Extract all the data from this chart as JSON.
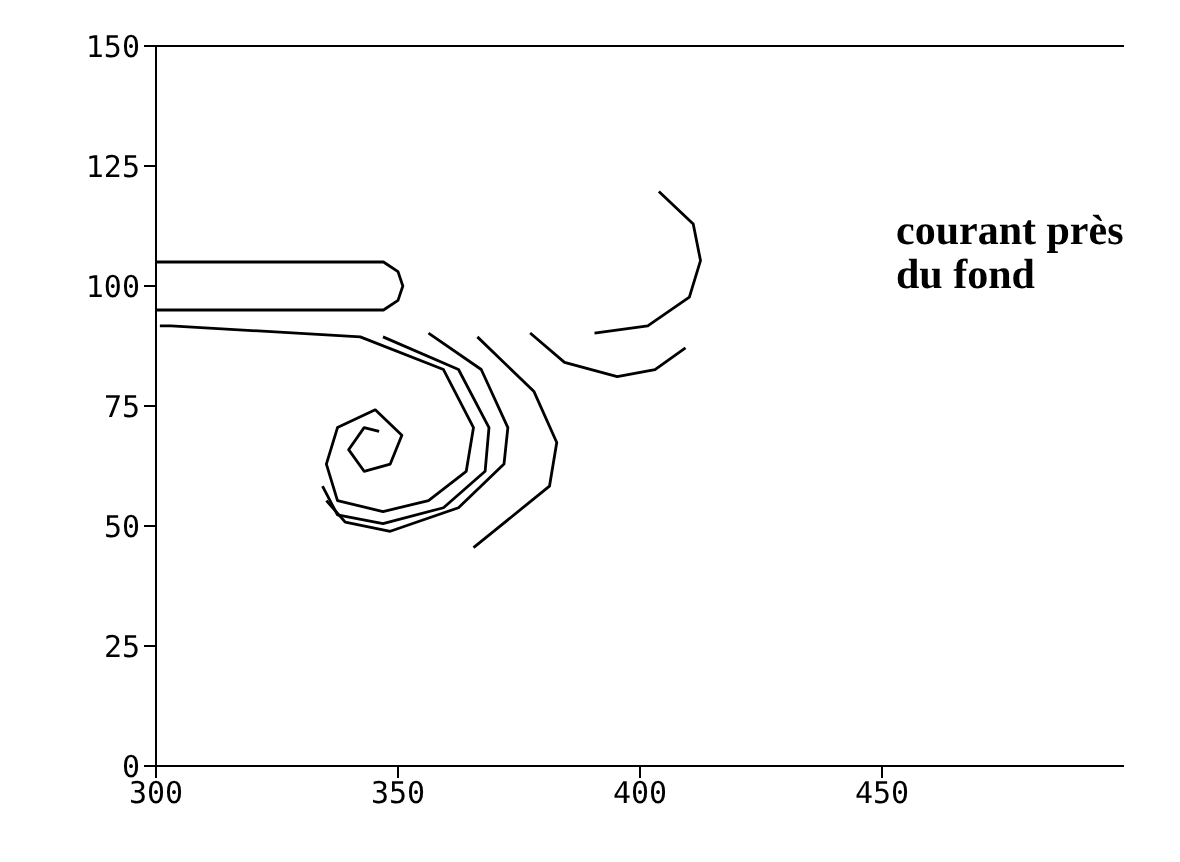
{
  "chart_data": {
    "type": "line",
    "annotations": [
      "courant près du fond"
    ],
    "xlim": [
      300,
      500
    ],
    "xticks": [
      300,
      350,
      400,
      450
    ],
    "ylim": [
      0,
      150
    ],
    "yticks": [
      0,
      25,
      50,
      75,
      100,
      125,
      150
    ],
    "grid": false,
    "marker": "none",
    "line_style": "solid",
    "series": [
      {
        "color": "#000000",
        "x": [
          300,
          347,
          350,
          351,
          350,
          347,
          300
        ],
        "values": [
          105,
          105,
          103,
          100,
          97,
          95,
          95
        ]
      },
      {
        "color": "#000000",
        "x": [
          300.8,
          303.1,
          342.2,
          359.4,
          365.6,
          364.1,
          356.3,
          346.9,
          337.5,
          335.2,
          337.5,
          345.3,
          350.8,
          348.4,
          343,
          339.8,
          343,
          346.1
        ],
        "values": [
          91.7,
          91.7,
          89.4,
          82.6,
          70.5,
          61.4,
          55.3,
          53,
          55.3,
          62.9,
          70.5,
          74.2,
          68.9,
          62.9,
          61.4,
          65.9,
          70.5,
          69.7
        ]
      },
      {
        "color": "#000000",
        "x": [
          346.9,
          362.5,
          368.8,
          368,
          359.4,
          346.9,
          337.5,
          334.4
        ],
        "values": [
          89.4,
          82.6,
          70.5,
          61.4,
          53.8,
          50.5,
          52.3,
          58.3
        ]
      },
      {
        "color": "#000000",
        "x": [
          356.3,
          367.2,
          372.7,
          371.9,
          362.5,
          348.4,
          339.1,
          335.2
        ],
        "values": [
          90.2,
          82.6,
          70.5,
          62.9,
          53.8,
          48.9,
          50.8,
          55.3
        ]
      },
      {
        "color": "#000000",
        "x": [
          366.4,
          378.1,
          382.8,
          381.3,
          365.6
        ],
        "values": [
          89.4,
          78,
          67.4,
          58.3,
          45.5
        ]
      },
      {
        "color": "#000000",
        "x": [
          403.9,
          411,
          412.5,
          410.2,
          401.6,
          390.6
        ],
        "values": [
          119.7,
          112.9,
          105.3,
          97.7,
          91.7,
          90.2
        ]
      },
      {
        "color": "#000000",
        "x": [
          377.3,
          384.4,
          395.3,
          403.1,
          409.4
        ],
        "values": [
          90.2,
          84.1,
          81.1,
          82.6,
          87.1
        ]
      }
    ]
  }
}
